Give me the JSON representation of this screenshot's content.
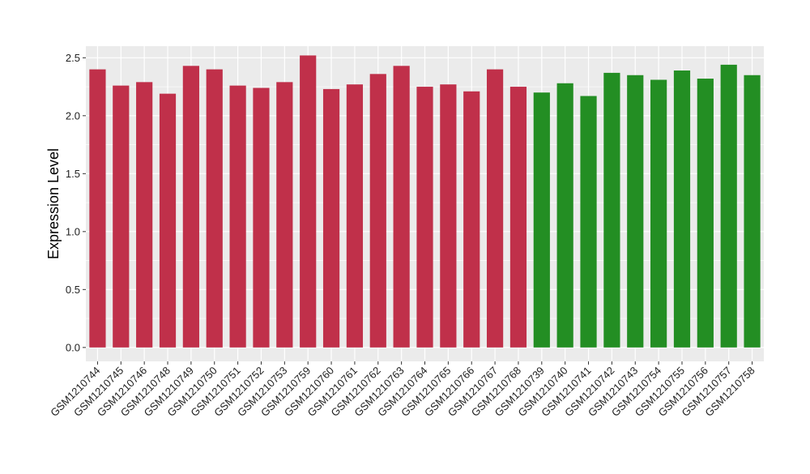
{
  "chart_data": {
    "type": "bar",
    "ylabel": "Expression Level",
    "ylim": [
      -0.12,
      2.6
    ],
    "yticks": [
      "0.0",
      "0.5",
      "1.0",
      "1.5",
      "2.0",
      "2.5"
    ],
    "grid": true,
    "legend": "none",
    "colors": {
      "group_red": "#c0304a",
      "group_green": "#238e23",
      "panel": "#ebebeb",
      "grid": "#ffffff"
    },
    "categories": [
      "GSM1210744",
      "GSM1210745",
      "GSM1210746",
      "GSM1210748",
      "GSM1210749",
      "GSM1210750",
      "GSM1210751",
      "GSM1210752",
      "GSM1210753",
      "GSM1210759",
      "GSM1210760",
      "GSM1210761",
      "GSM1210762",
      "GSM1210763",
      "GSM1210764",
      "GSM1210765",
      "GSM1210766",
      "GSM1210767",
      "GSM1210768",
      "GSM1210739",
      "GSM1210740",
      "GSM1210741",
      "GSM1210742",
      "GSM1210743",
      "GSM1210754",
      "GSM1210755",
      "GSM1210756",
      "GSM1210757",
      "GSM1210758"
    ],
    "values": [
      2.4,
      2.26,
      2.29,
      2.19,
      2.43,
      2.4,
      2.26,
      2.24,
      2.29,
      2.52,
      2.23,
      2.27,
      2.36,
      2.43,
      2.25,
      2.27,
      2.21,
      2.4,
      2.25,
      2.2,
      2.28,
      2.17,
      2.37,
      2.35,
      2.31,
      2.39,
      2.32,
      2.44,
      2.35
    ],
    "groups": [
      "red",
      "red",
      "red",
      "red",
      "red",
      "red",
      "red",
      "red",
      "red",
      "red",
      "red",
      "red",
      "red",
      "red",
      "red",
      "red",
      "red",
      "red",
      "red",
      "green",
      "green",
      "green",
      "green",
      "green",
      "green",
      "green",
      "green",
      "green",
      "green"
    ]
  }
}
